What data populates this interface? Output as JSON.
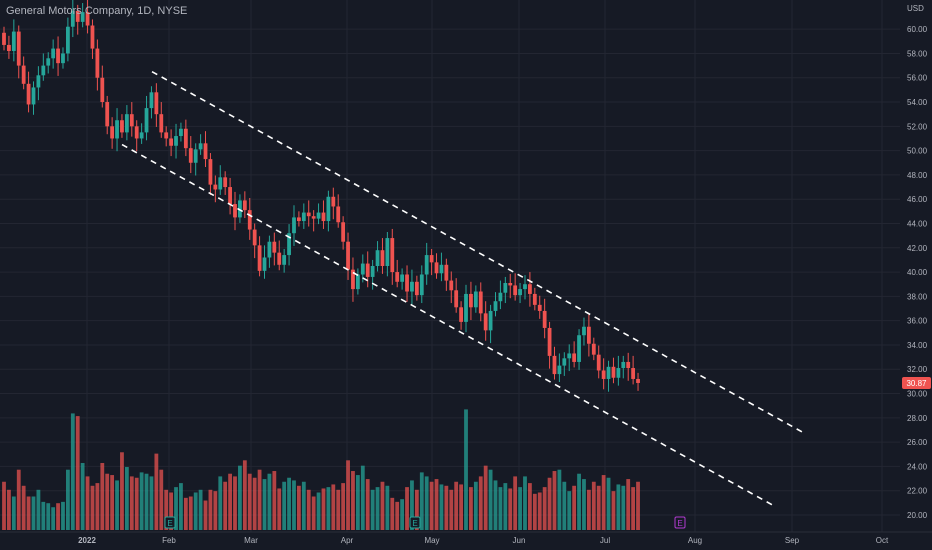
{
  "header": {
    "title": "General Motors Company, 1D, NYSE"
  },
  "chart_data": {
    "type": "candlestick",
    "currency": "USD",
    "current_price": "30.87",
    "x_labels": [
      "2022",
      "Feb",
      "Mar",
      "Apr",
      "May",
      "Jun",
      "Jul",
      "Aug",
      "Sep",
      "Oct"
    ],
    "y_ticks": [
      "60.00",
      "58.00",
      "56.00",
      "54.00",
      "52.00",
      "50.00",
      "48.00",
      "46.00",
      "44.00",
      "42.00",
      "40.00",
      "38.00",
      "36.00",
      "34.00",
      "32.00",
      "30.00",
      "28.00",
      "26.00",
      "24.00",
      "22.00",
      "20.00"
    ],
    "ylim": [
      18.6,
      62.4
    ],
    "grid": true,
    "colors": {
      "background": "#161a25",
      "grid": "#232632",
      "up": "#26a69a",
      "down": "#ef5350",
      "text": "#b2b5be",
      "trendline": "#ffffff",
      "earnings_green": "#26a69a",
      "earnings_purple": "#b13bd1"
    },
    "events": [
      {
        "label": "E",
        "position": "late Jan"
      },
      {
        "label": "E",
        "position": "late Apr"
      },
      {
        "label": "E",
        "position": "late Jul"
      }
    ],
    "trend_channel": {
      "upper": {
        "from": [
          "mid Jan",
          56.5
        ],
        "to": [
          "early Sep",
          26.8
        ]
      },
      "lower": {
        "from": [
          "early Jan",
          50.5
        ],
        "to": [
          "end Aug",
          20.8
        ]
      }
    },
    "candles": [
      [
        59.7,
        58.7
      ],
      [
        58.7,
        58.2
      ],
      [
        58.2,
        59.8
      ],
      [
        59.8,
        57.0
      ],
      [
        57.0,
        55.5
      ],
      [
        55.5,
        53.8
      ],
      [
        53.8,
        55.2
      ],
      [
        55.2,
        56.2
      ],
      [
        56.2,
        57.0
      ],
      [
        57.0,
        57.6
      ],
      [
        57.6,
        58.4
      ],
      [
        58.4,
        57.2
      ],
      [
        57.2,
        58.0
      ],
      [
        58.0,
        60.2
      ],
      [
        60.2,
        61.5
      ],
      [
        61.5,
        60.6
      ],
      [
        60.6,
        61.4
      ],
      [
        61.4,
        60.3
      ],
      [
        60.3,
        58.4
      ],
      [
        58.4,
        56.0
      ],
      [
        56.0,
        54.0
      ],
      [
        54.0,
        52.0
      ],
      [
        52.0,
        51.0
      ],
      [
        51.0,
        52.5
      ],
      [
        52.5,
        51.5
      ],
      [
        51.5,
        53.0
      ],
      [
        53.0,
        52.0
      ],
      [
        52.0,
        51.0
      ],
      [
        51.0,
        51.5
      ],
      [
        51.5,
        53.5
      ],
      [
        53.5,
        54.8
      ],
      [
        54.8,
        53.0
      ],
      [
        53.0,
        51.5
      ],
      [
        51.5,
        51.0
      ],
      [
        51.0,
        50.4
      ],
      [
        50.4,
        51.2
      ],
      [
        51.2,
        51.8
      ],
      [
        51.8,
        50.2
      ],
      [
        50.2,
        49.0
      ],
      [
        49.0,
        50.1
      ],
      [
        50.1,
        50.6
      ],
      [
        50.6,
        49.3
      ],
      [
        49.3,
        47.2
      ],
      [
        47.2,
        46.8
      ],
      [
        46.8,
        47.8
      ],
      [
        47.8,
        47.0
      ],
      [
        47.0,
        45.6
      ],
      [
        45.6,
        44.5
      ],
      [
        44.5,
        45.9
      ],
      [
        45.9,
        45.1
      ],
      [
        45.1,
        43.5
      ],
      [
        43.5,
        42.2
      ],
      [
        42.2,
        40.1
      ],
      [
        40.1,
        41.2
      ],
      [
        41.2,
        42.5
      ],
      [
        42.5,
        41.6
      ],
      [
        41.6,
        40.6
      ],
      [
        40.6,
        41.4
      ],
      [
        41.4,
        43.2
      ],
      [
        43.2,
        44.5
      ],
      [
        44.5,
        44.2
      ],
      [
        44.2,
        44.9
      ],
      [
        44.9,
        44.6
      ],
      [
        44.6,
        44.4
      ],
      [
        44.4,
        44.9
      ],
      [
        44.9,
        44.2
      ],
      [
        44.2,
        46.2
      ],
      [
        46.2,
        45.4
      ],
      [
        45.4,
        44.1
      ],
      [
        44.1,
        42.5
      ],
      [
        42.5,
        40.2
      ],
      [
        40.2,
        38.6
      ],
      [
        38.6,
        39.8
      ],
      [
        39.8,
        40.7
      ],
      [
        40.7,
        39.6
      ],
      [
        39.6,
        40.5
      ],
      [
        40.5,
        41.8
      ],
      [
        41.8,
        40.5
      ],
      [
        40.5,
        42.8
      ],
      [
        42.8,
        40.0
      ],
      [
        40.0,
        39.2
      ],
      [
        39.2,
        39.8
      ],
      [
        39.8,
        38.4
      ],
      [
        38.4,
        39.2
      ],
      [
        39.2,
        38.1
      ],
      [
        38.1,
        39.8
      ],
      [
        39.8,
        41.4
      ],
      [
        41.4,
        40.8
      ],
      [
        40.8,
        39.9
      ],
      [
        39.9,
        40.6
      ],
      [
        40.6,
        39.3
      ],
      [
        39.3,
        38.5
      ],
      [
        38.5,
        37.1
      ],
      [
        37.1,
        35.9
      ],
      [
        35.9,
        38.2
      ],
      [
        38.2,
        37.1
      ],
      [
        37.1,
        38.4
      ],
      [
        38.4,
        36.6
      ],
      [
        36.6,
        35.2
      ],
      [
        35.2,
        36.8
      ],
      [
        36.8,
        37.6
      ],
      [
        37.6,
        38.3
      ],
      [
        38.3,
        39.1
      ],
      [
        39.1,
        38.9
      ],
      [
        38.9,
        38.1
      ],
      [
        38.1,
        38.6
      ],
      [
        38.6,
        39.0
      ],
      [
        39.0,
        38.2
      ],
      [
        38.2,
        37.3
      ],
      [
        37.3,
        36.8
      ],
      [
        36.8,
        35.4
      ],
      [
        35.4,
        33.1
      ],
      [
        33.1,
        31.6
      ],
      [
        31.6,
        32.3
      ],
      [
        32.3,
        32.9
      ],
      [
        32.9,
        33.3
      ],
      [
        33.3,
        32.6
      ],
      [
        32.6,
        34.8
      ],
      [
        34.8,
        35.5
      ],
      [
        35.5,
        34.1
      ],
      [
        34.1,
        33.2
      ],
      [
        33.2,
        31.9
      ],
      [
        31.9,
        31.2
      ],
      [
        31.2,
        32.2
      ],
      [
        32.2,
        31.3
      ],
      [
        31.3,
        32.1
      ],
      [
        32.1,
        32.6
      ],
      [
        32.6,
        32.1
      ],
      [
        32.1,
        31.2
      ],
      [
        31.2,
        30.87
      ]
    ],
    "volume_scale": "relative (0-1)",
    "volume": [
      0.36,
      0.3,
      0.25,
      0.45,
      0.33,
      0.25,
      0.25,
      0.3,
      0.21,
      0.2,
      0.17,
      0.2,
      0.21,
      0.45,
      0.87,
      0.85,
      0.5,
      0.4,
      0.33,
      0.35,
      0.5,
      0.42,
      0.41,
      0.37,
      0.58,
      0.47,
      0.4,
      0.39,
      0.43,
      0.42,
      0.4,
      0.57,
      0.45,
      0.3,
      0.28,
      0.32,
      0.35,
      0.24,
      0.25,
      0.28,
      0.3,
      0.22,
      0.3,
      0.29,
      0.4,
      0.36,
      0.42,
      0.4,
      0.48,
      0.52,
      0.42,
      0.39,
      0.45,
      0.38,
      0.42,
      0.44,
      0.31,
      0.36,
      0.39,
      0.37,
      0.33,
      0.36,
      0.3,
      0.25,
      0.28,
      0.31,
      0.32,
      0.34,
      0.3,
      0.35,
      0.52,
      0.44,
      0.41,
      0.48,
      0.38,
      0.3,
      0.32,
      0.36,
      0.33,
      0.24,
      0.21,
      0.23,
      0.32,
      0.37,
      0.3,
      0.43,
      0.4,
      0.36,
      0.38,
      0.34,
      0.33,
      0.3,
      0.36,
      0.34,
      0.9,
      0.32,
      0.36,
      0.4,
      0.48,
      0.45,
      0.37,
      0.32,
      0.35,
      0.31,
      0.4,
      0.32,
      0.4,
      0.35,
      0.27,
      0.28,
      0.32,
      0.39,
      0.44,
      0.45,
      0.36,
      0.29,
      0.33,
      0.42,
      0.38,
      0.3,
      0.36,
      0.33,
      0.41,
      0.39,
      0.29,
      0.34,
      0.33,
      0.38,
      0.32,
      0.36
    ]
  }
}
